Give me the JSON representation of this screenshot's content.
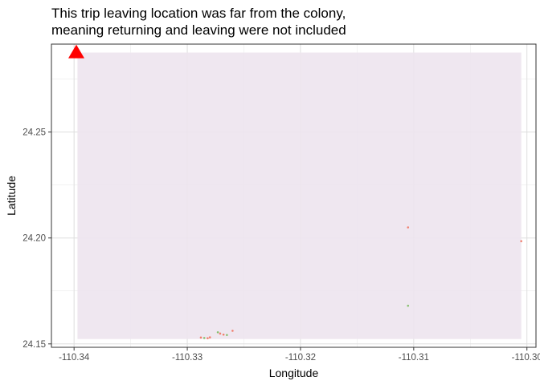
{
  "chart_data": {
    "type": "scatter",
    "title_lines": [
      "This trip leaving location was far from the colony,",
      "meaning returning and leaving were not included"
    ],
    "xlabel": "Longitude",
    "ylabel": "Latitude",
    "xlim": [
      -110.342,
      -110.2992
    ],
    "ylim": [
      24.1484,
      24.2915
    ],
    "x_ticks": [
      -110.34,
      -110.33,
      -110.32,
      -110.31,
      -110.3
    ],
    "y_ticks": [
      24.15,
      24.2,
      24.25
    ],
    "x_tick_labels": [
      "-110.34",
      "-110.33",
      "-110.32",
      "-110.31",
      "-110.30"
    ],
    "y_tick_labels": [
      "24.15",
      "24.20",
      "24.25"
    ],
    "grid": true,
    "background_region": {
      "x": [
        -110.3397,
        -110.3005
      ],
      "y": [
        24.1523,
        24.2875
      ],
      "color": "#ede4ee"
    },
    "colony_marker": {
      "x": -110.3398,
      "y": 24.2875,
      "shape": "triangle",
      "color": "#ff0000"
    },
    "track_points": [
      {
        "x": -110.3288,
        "y": 24.153
      },
      {
        "x": -110.3285,
        "y": 24.1528
      },
      {
        "x": -110.3282,
        "y": 24.1527
      },
      {
        "x": -110.328,
        "y": 24.1531
      },
      {
        "x": -110.3273,
        "y": 24.1555
      },
      {
        "x": -110.3271,
        "y": 24.1549
      },
      {
        "x": -110.3268,
        "y": 24.1544
      },
      {
        "x": -110.3265,
        "y": 24.1542
      },
      {
        "x": -110.326,
        "y": 24.1562
      },
      {
        "x": -110.3105,
        "y": 24.205
      },
      {
        "x": -110.3105,
        "y": 24.168
      },
      {
        "x": -110.3005,
        "y": 24.1985
      }
    ],
    "point_color": "#f08070",
    "point_color_alt": "#88c070"
  }
}
